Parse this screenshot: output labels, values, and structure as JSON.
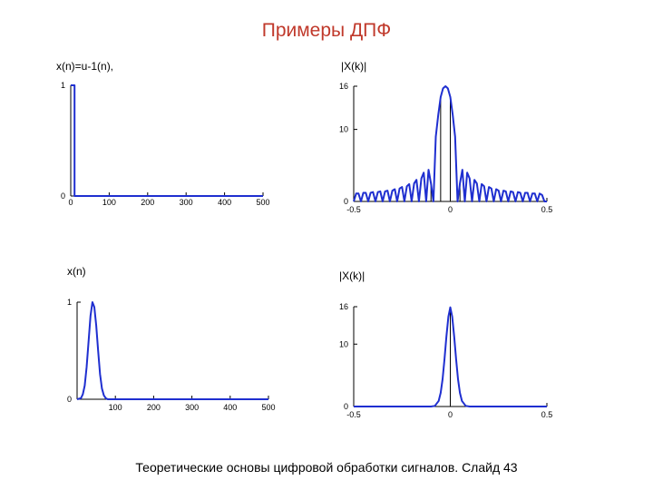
{
  "slide": {
    "title": "Примеры ДПФ",
    "footer": "Теоретические основы цифровой обработки сигналов. Слайд 43"
  },
  "panel_labels": {
    "top_left": "x(n)=u-1(n),",
    "top_right": "|X(k)|",
    "bottom_left": "x(n)",
    "bottom_right": "|X(k)|"
  },
  "colors": {
    "curve": "#1f2fd0",
    "axis": "#000000",
    "title": "#c0392b"
  },
  "chart_data": [
    {
      "id": "rect-time",
      "type": "line",
      "xlim": [
        0,
        500
      ],
      "ylim": [
        0,
        1
      ],
      "x_ticks": [
        0,
        100,
        200,
        300,
        400,
        500
      ],
      "y_ticks": [
        0,
        1
      ],
      "x": [
        0,
        0,
        10,
        10,
        500
      ],
      "y": [
        1,
        1,
        1,
        0,
        0
      ]
    },
    {
      "id": "rect-spectrum",
      "type": "line",
      "xlim": [
        -0.5,
        0.5
      ],
      "ylim": [
        0,
        16
      ],
      "x_ticks": [
        -0.5,
        0,
        0.5
      ],
      "y_ticks": [
        0,
        10,
        16
      ],
      "x_tick_labels": [
        "-0.5",
        "0",
        "0.5"
      ],
      "y_tick_labels": [
        "0",
        "10",
        "16"
      ],
      "stems_at": [
        -0.1,
        -0.05,
        0.0,
        0.05
      ],
      "x": [
        -0.5,
        -0.4875,
        -0.475,
        -0.4625,
        -0.45,
        -0.4375,
        -0.425,
        -0.4125,
        -0.4,
        -0.3875,
        -0.375,
        -0.3625,
        -0.35,
        -0.3375,
        -0.325,
        -0.3125,
        -0.3,
        -0.2875,
        -0.275,
        -0.2625,
        -0.25,
        -0.2375,
        -0.225,
        -0.2125,
        -0.2,
        -0.1875,
        -0.175,
        -0.1625,
        -0.15,
        -0.1375,
        -0.125,
        -0.1125,
        -0.1,
        -0.0875,
        -0.075,
        -0.0625,
        -0.05,
        -0.0375,
        -0.025,
        -0.0125,
        0,
        0.0125,
        0.025,
        0.0375,
        0.05,
        0.0625,
        0.075,
        0.0875,
        0.1,
        0.1125,
        0.125,
        0.1375,
        0.15,
        0.1625,
        0.175,
        0.1875,
        0.2,
        0.2125,
        0.225,
        0.2375,
        0.25,
        0.2625,
        0.275,
        0.2875,
        0.3,
        0.3125,
        0.325,
        0.3375,
        0.35,
        0.3625,
        0.375,
        0.3875,
        0.4,
        0.4125,
        0.425,
        0.4375,
        0.45,
        0.4625,
        0.475,
        0.4875,
        0.5
      ],
      "y": [
        0,
        1.1,
        1.1,
        0,
        1.2,
        1.2,
        0,
        1.2,
        1.3,
        0,
        1.3,
        1.4,
        0,
        1.4,
        1.5,
        0,
        1.5,
        1.7,
        0,
        1.8,
        2.0,
        0,
        2.1,
        2.4,
        0,
        2.5,
        3.0,
        0,
        3.2,
        4.0,
        0,
        4.4,
        2.5,
        0,
        9.0,
        12.0,
        14.5,
        15.7,
        16,
        15.7,
        14.5,
        12.0,
        9.0,
        0,
        2.5,
        4.4,
        0,
        4.0,
        3.2,
        0,
        3.0,
        2.5,
        0,
        2.4,
        2.1,
        0,
        2.0,
        1.8,
        0,
        1.7,
        1.5,
        0,
        1.5,
        1.4,
        0,
        1.4,
        1.3,
        0,
        1.3,
        1.2,
        0,
        1.2,
        1.2,
        0,
        1.1,
        1.1,
        0,
        1.1,
        0.9,
        0,
        0
      ]
    },
    {
      "id": "gauss-time",
      "type": "line",
      "xlim": [
        0,
        500
      ],
      "ylim": [
        0,
        1
      ],
      "x_ticks": [
        100,
        200,
        300,
        400,
        500
      ],
      "y_ticks": [
        0,
        1
      ],
      "x": [
        0,
        10,
        15,
        20,
        25,
        30,
        35,
        40,
        45,
        50,
        55,
        60,
        65,
        70,
        75,
        80,
        90,
        500
      ],
      "y": [
        0,
        0.01,
        0.05,
        0.14,
        0.33,
        0.6,
        0.86,
        1.0,
        0.95,
        0.76,
        0.5,
        0.26,
        0.11,
        0.04,
        0.01,
        0,
        0,
        0
      ]
    },
    {
      "id": "gauss-spectrum",
      "type": "line",
      "xlim": [
        -0.5,
        0.5
      ],
      "ylim": [
        0,
        16
      ],
      "x_ticks": [
        -0.5,
        0,
        0.5
      ],
      "y_ticks": [
        0,
        10,
        16
      ],
      "x_tick_labels": [
        "-0.5",
        "0",
        "0.5"
      ],
      "y_tick_labels": [
        "0",
        "10",
        "16"
      ],
      "stems_at": [
        0.0
      ],
      "x": [
        -0.5,
        -0.1,
        -0.08,
        -0.06,
        -0.05,
        -0.04,
        -0.03,
        -0.02,
        -0.01,
        0,
        0.01,
        0.02,
        0.03,
        0.04,
        0.05,
        0.06,
        0.08,
        0.1,
        0.5
      ],
      "y": [
        0,
        0,
        0.1,
        0.9,
        2.2,
        4.4,
        7.6,
        11.2,
        14.4,
        15.9,
        14.4,
        11.2,
        7.6,
        4.4,
        2.2,
        0.9,
        0.1,
        0,
        0
      ]
    }
  ]
}
